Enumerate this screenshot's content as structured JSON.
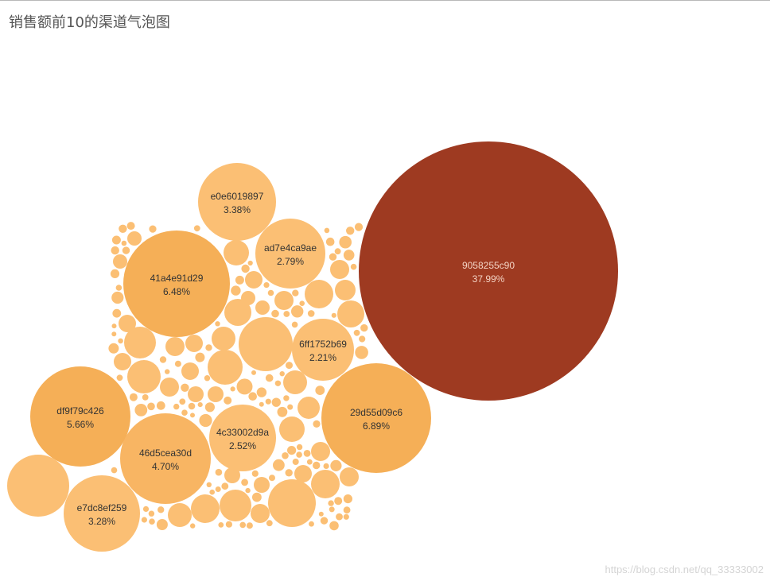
{
  "page": {
    "title": "销售额前10的渠道气泡图",
    "watermark": "https://blog.csdn.net/qq_33333002"
  },
  "colors": {
    "max_bubble": "#9e3a21",
    "bubble_dark": "#f5af57",
    "bubble_mid": "#f8b563",
    "bubble_light": "#fbbf74",
    "label_on_light": "#333333",
    "label_on_dark": "#f3d3c4"
  },
  "chart_data": {
    "type": "bubble",
    "title": "销售额前10的渠道气泡图",
    "size_measure": "sales share (%)",
    "labeled_bubbles": [
      {
        "channel": "9058255c90",
        "share_label": "37.99%",
        "share": 37.99
      },
      {
        "channel": "29d55d09c6",
        "share_label": "6.89%",
        "share": 6.89
      },
      {
        "channel": "41a4e91d29",
        "share_label": "6.48%",
        "share": 6.48
      },
      {
        "channel": "df9f79c426",
        "share_label": "5.66%",
        "share": 5.66
      },
      {
        "channel": "46d5cea30d",
        "share_label": "4.70%",
        "share": 4.7
      },
      {
        "channel": "e0e6019897",
        "share_label": "3.38%",
        "share": 3.38
      },
      {
        "channel": "e7dc8ef259",
        "share_label": "3.28%",
        "share": 3.28
      },
      {
        "channel": "ad7e4ca9ae",
        "share_label": "2.79%",
        "share": 2.79
      },
      {
        "channel": "4c33002d9a",
        "share_label": "2.52%",
        "share": 2.52
      },
      {
        "channel": "6ff1752b69",
        "share_label": "2.21%",
        "share": 2.21
      }
    ],
    "unlabeled_bubble_count": 282,
    "legend": "none"
  }
}
